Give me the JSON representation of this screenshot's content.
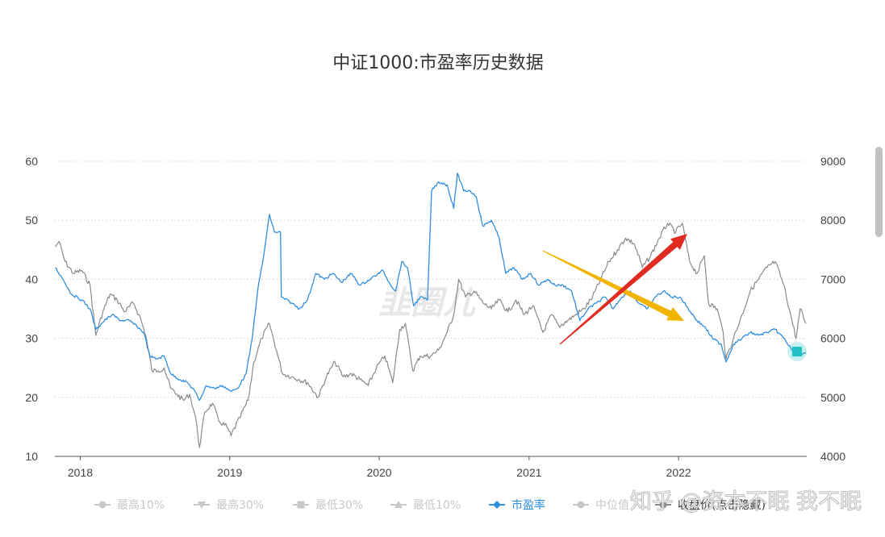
{
  "chart_data": {
    "type": "line",
    "title": "中证1000:市盈率历史数据",
    "y_left": {
      "ticks": [
        10,
        20,
        30,
        40,
        50,
        60
      ],
      "range": [
        10,
        60
      ]
    },
    "y_right": {
      "ticks": [
        4000,
        5000,
        6000,
        7000,
        8000,
        9000
      ],
      "range": [
        4000,
        9000
      ]
    },
    "x": {
      "ticks": [
        "2018",
        "2019",
        "2020",
        "2021",
        "2022"
      ],
      "range": [
        "2017-10-31",
        "2022-11-10"
      ]
    },
    "grid": true,
    "legend_position": "bottom",
    "legend": [
      {
        "label": "最高10%",
        "marker": "circle",
        "active": false
      },
      {
        "label": "最高30%",
        "marker": "triangle-down",
        "active": false
      },
      {
        "label": "最低30%",
        "marker": "square",
        "active": false
      },
      {
        "label": "最低10%",
        "marker": "triangle-up",
        "active": false
      },
      {
        "label": "市盈率",
        "marker": "diamond",
        "active": true
      },
      {
        "label": "中位值",
        "marker": "circle",
        "active": false
      },
      {
        "label": "收盘价(点击隐藏)",
        "marker": "circle",
        "active": true
      }
    ],
    "series": [
      {
        "name": "市盈率",
        "axis": "left",
        "color": "#2f8fe0",
        "points": [
          [
            "2017-11-01",
            42
          ],
          [
            "2017-11-20",
            40
          ],
          [
            "2017-12-10",
            37.5
          ],
          [
            "2018-01-05",
            36.5
          ],
          [
            "2018-01-25",
            35
          ],
          [
            "2018-02-08",
            31.5
          ],
          [
            "2018-03-01",
            33
          ],
          [
            "2018-03-20",
            34
          ],
          [
            "2018-04-10",
            33
          ],
          [
            "2018-05-01",
            33
          ],
          [
            "2018-05-20",
            32
          ],
          [
            "2018-06-05",
            31
          ],
          [
            "2018-06-20",
            27
          ],
          [
            "2018-07-05",
            26.5
          ],
          [
            "2018-07-25",
            27
          ],
          [
            "2018-08-10",
            24
          ],
          [
            "2018-09-01",
            23
          ],
          [
            "2018-09-20",
            22.5
          ],
          [
            "2018-10-08",
            21
          ],
          [
            "2018-10-19",
            19.5
          ],
          [
            "2018-11-05",
            22
          ],
          [
            "2018-11-25",
            21.5
          ],
          [
            "2018-12-15",
            22
          ],
          [
            "2019-01-04",
            21
          ],
          [
            "2019-01-20",
            21.5
          ],
          [
            "2019-02-10",
            24
          ],
          [
            "2019-02-25",
            30
          ],
          [
            "2019-03-10",
            38
          ],
          [
            "2019-03-25",
            44
          ],
          [
            "2019-04-08",
            51
          ],
          [
            "2019-04-20",
            48
          ],
          [
            "2019-05-05",
            48
          ],
          [
            "2019-05-07",
            37
          ],
          [
            "2019-06-01",
            36
          ],
          [
            "2019-06-20",
            35
          ],
          [
            "2019-07-10",
            36.5
          ],
          [
            "2019-07-30",
            41
          ],
          [
            "2019-08-20",
            40
          ],
          [
            "2019-09-10",
            41
          ],
          [
            "2019-10-01",
            39.5
          ],
          [
            "2019-10-25",
            41
          ],
          [
            "2019-11-15",
            39
          ],
          [
            "2019-12-10",
            40
          ],
          [
            "2020-01-10",
            41.5
          ],
          [
            "2020-01-25",
            39.5
          ],
          [
            "2020-02-10",
            38
          ],
          [
            "2020-02-25",
            43
          ],
          [
            "2020-03-10",
            42
          ],
          [
            "2020-03-25",
            35.5
          ],
          [
            "2020-04-10",
            37
          ],
          [
            "2020-04-28",
            36.5
          ],
          [
            "2020-05-08",
            55
          ],
          [
            "2020-05-25",
            56.5
          ],
          [
            "2020-06-15",
            56
          ],
          [
            "2020-07-01",
            52
          ],
          [
            "2020-07-10",
            58
          ],
          [
            "2020-07-25",
            55
          ],
          [
            "2020-08-10",
            55
          ],
          [
            "2020-08-25",
            54
          ],
          [
            "2020-09-10",
            49
          ],
          [
            "2020-10-01",
            50
          ],
          [
            "2020-10-20",
            47
          ],
          [
            "2020-11-05",
            41
          ],
          [
            "2020-11-25",
            42
          ],
          [
            "2020-12-15",
            40
          ],
          [
            "2021-01-05",
            41
          ],
          [
            "2021-01-25",
            39
          ],
          [
            "2021-02-15",
            40
          ],
          [
            "2021-03-05",
            39
          ],
          [
            "2021-03-25",
            39
          ],
          [
            "2021-04-15",
            38
          ],
          [
            "2021-05-05",
            33
          ],
          [
            "2021-05-25",
            35
          ],
          [
            "2021-06-15",
            36
          ],
          [
            "2021-07-05",
            37
          ],
          [
            "2021-07-25",
            35
          ],
          [
            "2021-08-15",
            37
          ],
          [
            "2021-09-05",
            38
          ],
          [
            "2021-09-25",
            36
          ],
          [
            "2021-10-15",
            35
          ],
          [
            "2021-11-05",
            37
          ],
          [
            "2021-11-25",
            38
          ],
          [
            "2021-12-15",
            37
          ],
          [
            "2022-01-05",
            37
          ],
          [
            "2022-01-25",
            35
          ],
          [
            "2022-02-15",
            33
          ],
          [
            "2022-03-05",
            32
          ],
          [
            "2022-03-25",
            30
          ],
          [
            "2022-04-15",
            29
          ],
          [
            "2022-04-27",
            26
          ],
          [
            "2022-05-15",
            29
          ],
          [
            "2022-06-05",
            30
          ],
          [
            "2022-06-25",
            31
          ],
          [
            "2022-07-15",
            30.5
          ],
          [
            "2022-08-05",
            31
          ],
          [
            "2022-08-25",
            31.5
          ],
          [
            "2022-09-15",
            30
          ],
          [
            "2022-10-05",
            28
          ],
          [
            "2022-10-25",
            27
          ],
          [
            "2022-11-08",
            27.5
          ]
        ]
      },
      {
        "name": "收盘价(点击隐藏)",
        "axis": "right",
        "color": "#8a8a8a",
        "points": [
          [
            "2017-11-01",
            7550
          ],
          [
            "2017-11-10",
            7640
          ],
          [
            "2017-11-25",
            7300
          ],
          [
            "2017-12-15",
            7100
          ],
          [
            "2018-01-05",
            7150
          ],
          [
            "2018-01-25",
            6900
          ],
          [
            "2018-02-08",
            6050
          ],
          [
            "2018-02-25",
            6450
          ],
          [
            "2018-03-15",
            6750
          ],
          [
            "2018-04-01",
            6650
          ],
          [
            "2018-04-20",
            6450
          ],
          [
            "2018-05-10",
            6600
          ],
          [
            "2018-05-25",
            6400
          ],
          [
            "2018-06-10",
            6050
          ],
          [
            "2018-06-25",
            5450
          ],
          [
            "2018-07-10",
            5450
          ],
          [
            "2018-07-25",
            5500
          ],
          [
            "2018-08-10",
            5150
          ],
          [
            "2018-08-25",
            5050
          ],
          [
            "2018-09-10",
            4950
          ],
          [
            "2018-09-25",
            5050
          ],
          [
            "2018-10-10",
            4650
          ],
          [
            "2018-10-19",
            4150
          ],
          [
            "2018-11-01",
            4750
          ],
          [
            "2018-11-20",
            4900
          ],
          [
            "2018-12-05",
            4600
          ],
          [
            "2018-12-25",
            4500
          ],
          [
            "2019-01-04",
            4350
          ],
          [
            "2019-01-25",
            4650
          ],
          [
            "2019-02-15",
            4950
          ],
          [
            "2019-03-01",
            5600
          ],
          [
            "2019-03-20",
            6000
          ],
          [
            "2019-04-08",
            6250
          ],
          [
            "2019-04-25",
            5800
          ],
          [
            "2019-05-10",
            5400
          ],
          [
            "2019-06-01",
            5350
          ],
          [
            "2019-06-20",
            5300
          ],
          [
            "2019-07-10",
            5250
          ],
          [
            "2019-08-05",
            5000
          ],
          [
            "2019-08-25",
            5350
          ],
          [
            "2019-09-15",
            5600
          ],
          [
            "2019-10-05",
            5350
          ],
          [
            "2019-10-25",
            5400
          ],
          [
            "2019-11-15",
            5300
          ],
          [
            "2019-12-05",
            5200
          ],
          [
            "2019-12-25",
            5500
          ],
          [
            "2020-01-15",
            5700
          ],
          [
            "2020-02-03",
            5250
          ],
          [
            "2020-02-20",
            6150
          ],
          [
            "2020-03-05",
            6250
          ],
          [
            "2020-03-23",
            5450
          ],
          [
            "2020-04-10",
            5700
          ],
          [
            "2020-05-05",
            5700
          ],
          [
            "2020-05-25",
            5800
          ],
          [
            "2020-06-15",
            6100
          ],
          [
            "2020-07-01",
            6400
          ],
          [
            "2020-07-13",
            7000
          ],
          [
            "2020-07-30",
            6700
          ],
          [
            "2020-08-20",
            6800
          ],
          [
            "2020-09-10",
            6600
          ],
          [
            "2020-10-01",
            6500
          ],
          [
            "2020-10-20",
            6650
          ],
          [
            "2020-11-10",
            6450
          ],
          [
            "2020-11-30",
            6650
          ],
          [
            "2020-12-20",
            6400
          ],
          [
            "2021-01-10",
            6550
          ],
          [
            "2021-02-04",
            6100
          ],
          [
            "2021-02-25",
            6400
          ],
          [
            "2021-03-15",
            6200
          ],
          [
            "2021-04-05",
            6300
          ],
          [
            "2021-04-25",
            6400
          ],
          [
            "2021-05-15",
            6500
          ],
          [
            "2021-06-05",
            6700
          ],
          [
            "2021-06-25",
            7000
          ],
          [
            "2021-07-15",
            7300
          ],
          [
            "2021-08-05",
            7500
          ],
          [
            "2021-08-25",
            7700
          ],
          [
            "2021-09-15",
            7600
          ],
          [
            "2021-10-05",
            7200
          ],
          [
            "2021-10-25",
            7400
          ],
          [
            "2021-11-15",
            7700
          ],
          [
            "2021-12-05",
            7950
          ],
          [
            "2021-12-25",
            7800
          ],
          [
            "2022-01-10",
            7950
          ],
          [
            "2022-01-28",
            7300
          ],
          [
            "2022-02-15",
            7100
          ],
          [
            "2022-03-05",
            7400
          ],
          [
            "2022-03-15",
            6600
          ],
          [
            "2022-04-05",
            6500
          ],
          [
            "2022-04-20",
            6100
          ],
          [
            "2022-04-27",
            5650
          ],
          [
            "2022-05-15",
            6000
          ],
          [
            "2022-06-05",
            6400
          ],
          [
            "2022-06-25",
            6800
          ],
          [
            "2022-07-15",
            7000
          ],
          [
            "2022-08-05",
            7200
          ],
          [
            "2022-08-25",
            7300
          ],
          [
            "2022-09-15",
            6900
          ],
          [
            "2022-10-05",
            6300
          ],
          [
            "2022-10-15",
            6000
          ],
          [
            "2022-10-25",
            6500
          ],
          [
            "2022-11-08",
            6250
          ]
        ]
      }
    ]
  },
  "watermark": {
    "left": "韭圈儿",
    "right": "知乎 @资本不眠 我不眠"
  },
  "colors": {
    "pe_line": "#2f8fe0",
    "price_line": "#8a8a8a",
    "red_arrow": "#e02b20",
    "yellow_arrow": "#f2b400",
    "end_marker": "#22c1c3",
    "inactive_legend": "#c8c8c8"
  }
}
